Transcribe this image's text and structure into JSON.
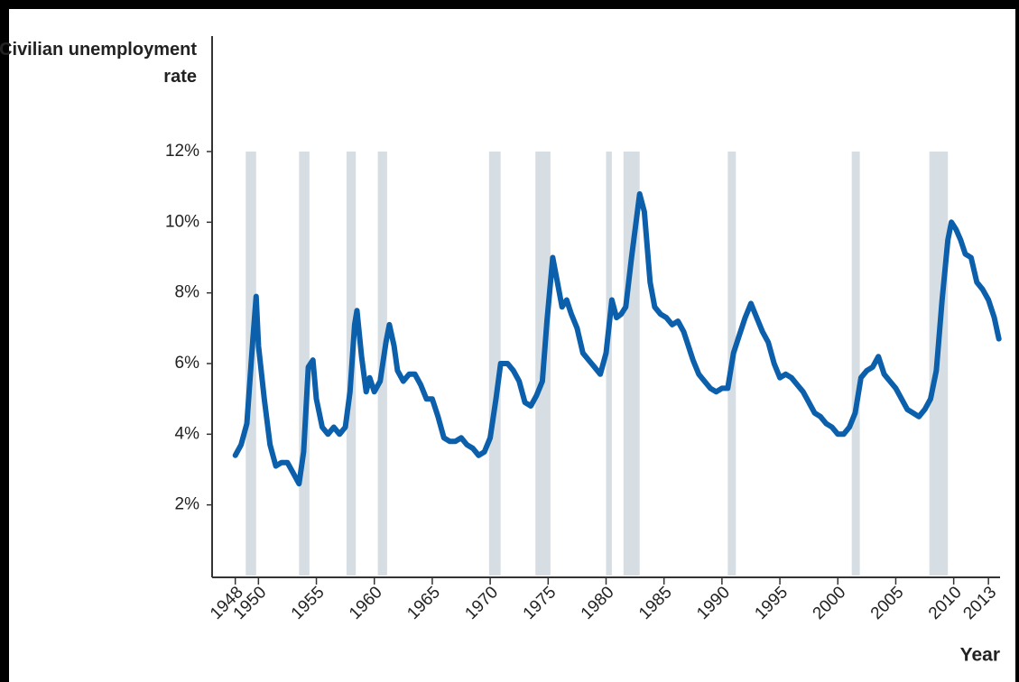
{
  "chart_data": {
    "type": "line",
    "y_label": "Civilian unemployment rate",
    "x_label": "Year",
    "color": "#0b5fab",
    "recession_color": "#d6dee4",
    "xlim": [
      1946,
      2014
    ],
    "ylim": [
      0,
      12
    ],
    "xticks": [
      1948,
      1950,
      1955,
      1960,
      1965,
      1970,
      1975,
      1980,
      1985,
      1990,
      1995,
      2000,
      2005,
      2010,
      2013
    ],
    "yticks": [
      {
        "value": 2,
        "label": "2%"
      },
      {
        "value": 4,
        "label": "4%"
      },
      {
        "value": 6,
        "label": "6%"
      },
      {
        "value": 8,
        "label": "8%"
      },
      {
        "value": 10,
        "label": "10%"
      },
      {
        "value": 12,
        "label": "12%"
      }
    ],
    "recessions": [
      [
        1948.9,
        1949.8
      ],
      [
        1953.5,
        1954.4
      ],
      [
        1957.6,
        1958.4
      ],
      [
        1960.3,
        1961.1
      ],
      [
        1969.9,
        1970.9
      ],
      [
        1973.9,
        1975.2
      ],
      [
        1980.0,
        1980.5
      ],
      [
        1981.5,
        1982.9
      ],
      [
        1990.5,
        1991.2
      ],
      [
        2001.2,
        2001.9
      ],
      [
        2007.9,
        2009.5
      ]
    ],
    "x": [
      1948.0,
      1948.5,
      1949.0,
      1949.5,
      1949.8,
      1950.0,
      1950.5,
      1951.0,
      1951.5,
      1952.0,
      1952.5,
      1953.0,
      1953.5,
      1953.9,
      1954.3,
      1954.7,
      1955.0,
      1955.5,
      1956.0,
      1956.5,
      1957.0,
      1957.5,
      1957.9,
      1958.3,
      1958.5,
      1958.9,
      1959.3,
      1959.6,
      1960.0,
      1960.5,
      1961.0,
      1961.3,
      1961.7,
      1962.0,
      1962.5,
      1963.0,
      1963.5,
      1964.0,
      1964.5,
      1965.0,
      1965.5,
      1966.0,
      1966.5,
      1967.0,
      1967.5,
      1968.0,
      1968.5,
      1969.0,
      1969.5,
      1970.0,
      1970.5,
      1970.9,
      1971.5,
      1972.0,
      1972.5,
      1973.0,
      1973.5,
      1974.0,
      1974.5,
      1974.9,
      1975.4,
      1975.8,
      1976.2,
      1976.6,
      1977.0,
      1977.5,
      1978.0,
      1978.5,
      1979.0,
      1979.5,
      1980.0,
      1980.5,
      1980.9,
      1981.3,
      1981.7,
      1982.2,
      1982.9,
      1983.3,
      1983.8,
      1984.2,
      1984.7,
      1985.2,
      1985.7,
      1986.2,
      1986.7,
      1987.0,
      1987.5,
      1988.0,
      1988.5,
      1989.0,
      1989.5,
      1990.0,
      1990.5,
      1991.0,
      1991.5,
      1992.0,
      1992.5,
      1993.0,
      1993.5,
      1994.0,
      1994.5,
      1995.0,
      1995.5,
      1996.0,
      1996.5,
      1997.0,
      1997.5,
      1998.0,
      1998.5,
      1999.0,
      1999.5,
      2000.0,
      2000.5,
      2001.0,
      2001.5,
      2002.0,
      2002.5,
      2003.0,
      2003.5,
      2004.0,
      2004.5,
      2005.0,
      2005.5,
      2006.0,
      2006.5,
      2007.0,
      2007.5,
      2008.0,
      2008.5,
      2009.0,
      2009.5,
      2009.8,
      2010.2,
      2010.6,
      2011.0,
      2011.5,
      2012.0,
      2012.5,
      2013.0,
      2013.5,
      2013.9
    ],
    "values": [
      3.4,
      3.7,
      4.3,
      6.6,
      7.9,
      6.5,
      5.0,
      3.7,
      3.1,
      3.2,
      3.2,
      2.9,
      2.6,
      3.5,
      5.9,
      6.1,
      5.0,
      4.2,
      4.0,
      4.2,
      4.0,
      4.2,
      5.2,
      7.1,
      7.5,
      6.2,
      5.2,
      5.6,
      5.2,
      5.5,
      6.6,
      7.1,
      6.5,
      5.8,
      5.5,
      5.7,
      5.7,
      5.4,
      5.0,
      5.0,
      4.5,
      3.9,
      3.8,
      3.8,
      3.9,
      3.7,
      3.6,
      3.4,
      3.5,
      3.9,
      5.0,
      6.0,
      6.0,
      5.8,
      5.5,
      4.9,
      4.8,
      5.1,
      5.5,
      7.2,
      9.0,
      8.3,
      7.6,
      7.8,
      7.4,
      7.0,
      6.3,
      6.1,
      5.9,
      5.7,
      6.3,
      7.8,
      7.3,
      7.4,
      7.6,
      9.0,
      10.8,
      10.3,
      8.3,
      7.6,
      7.4,
      7.3,
      7.1,
      7.2,
      6.9,
      6.6,
      6.1,
      5.7,
      5.5,
      5.3,
      5.2,
      5.3,
      5.3,
      6.3,
      6.8,
      7.3,
      7.7,
      7.3,
      6.9,
      6.6,
      6.0,
      5.6,
      5.7,
      5.6,
      5.4,
      5.2,
      4.9,
      4.6,
      4.5,
      4.3,
      4.2,
      4.0,
      4.0,
      4.2,
      4.6,
      5.6,
      5.8,
      5.9,
      6.2,
      5.7,
      5.5,
      5.3,
      5.0,
      4.7,
      4.6,
      4.5,
      4.7,
      5.0,
      5.8,
      7.8,
      9.5,
      10.0,
      9.8,
      9.5,
      9.1,
      9.0,
      8.3,
      8.1,
      7.8,
      7.3,
      6.7
    ]
  }
}
